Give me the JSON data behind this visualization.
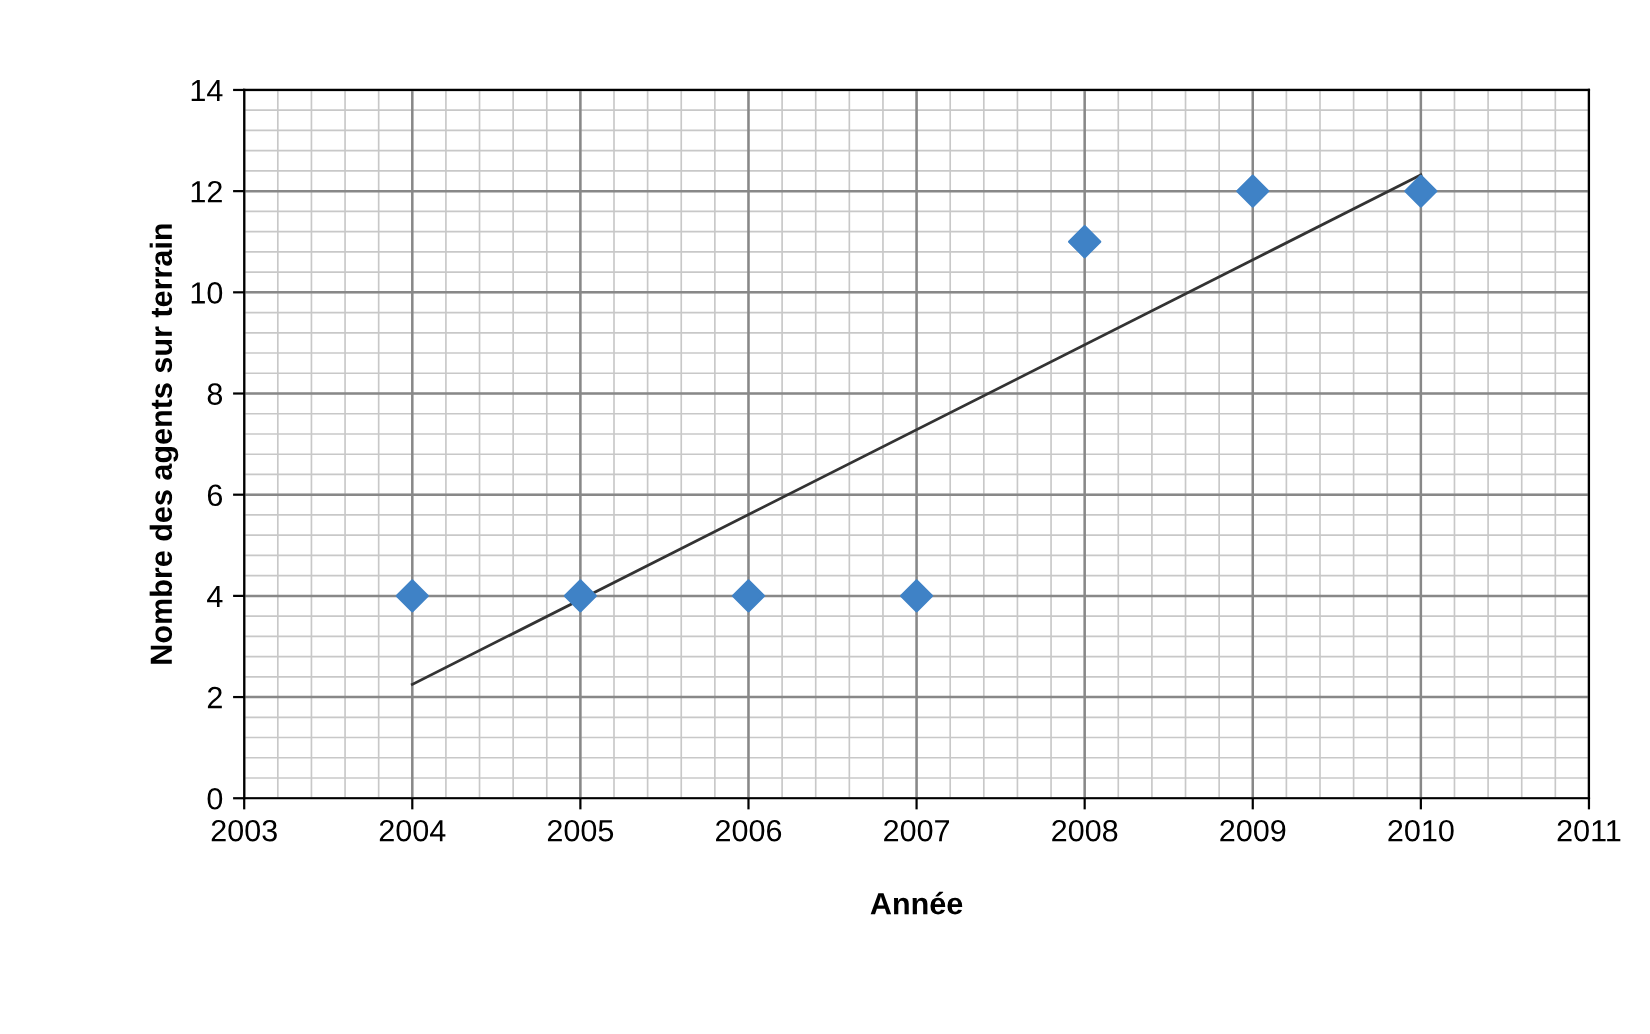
{
  "chart_data": {
    "type": "scatter",
    "xlabel": "Année",
    "ylabel": "Nombre des agents sur terrain",
    "x": [
      2004,
      2005,
      2006,
      2007,
      2008,
      2009,
      2010
    ],
    "series": [
      {
        "color": "#3f82c6",
        "marker": "diamond",
        "values": [
          4,
          4,
          4,
          4,
          11,
          12,
          12
        ]
      },
      {
        "type": "line",
        "color": "#333333",
        "marker": "none",
        "line_style": "solid",
        "x": [
          2004,
          2010
        ],
        "values": [
          2.25,
          12.32
        ]
      }
    ],
    "xlim": [
      2003,
      2011
    ],
    "xticks": [
      2003,
      2004,
      2005,
      2006,
      2007,
      2008,
      2009,
      2010,
      2011
    ],
    "ylim": [
      0,
      14
    ],
    "yticks": [
      0,
      2,
      4,
      6,
      8,
      10,
      12,
      14
    ],
    "grid": true,
    "legend": false
  }
}
